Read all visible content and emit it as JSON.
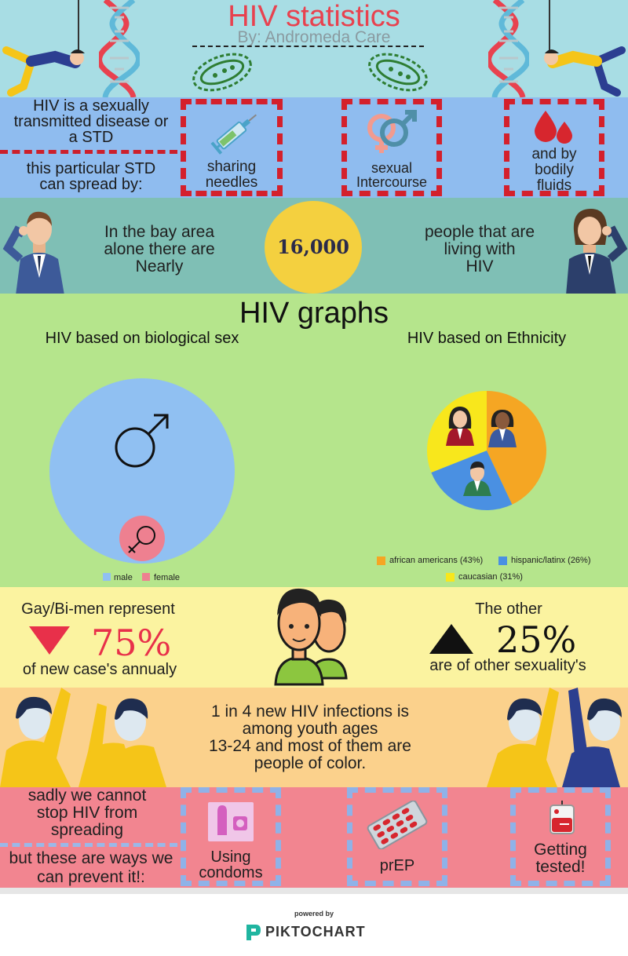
{
  "header": {
    "title": "HIV statistics",
    "byline": "By: Andromeda Care"
  },
  "spread": {
    "intro_lines": [
      "HIV is a sexually",
      "transmitted disease or",
      "a STD"
    ],
    "spread_lines": [
      "this particular STD",
      "can spread by:"
    ],
    "boxes": [
      {
        "lines": [
          "sharing",
          "needles"
        ],
        "icon": "syringe-icon"
      },
      {
        "lines": [
          "sexual",
          "Intercourse"
        ],
        "icon": "gender-symbols-icon"
      },
      {
        "lines": [
          "and by",
          "bodily",
          "fluids"
        ],
        "icon": "blood-drops-icon"
      }
    ]
  },
  "bay": {
    "left_lines": [
      "In the bay area",
      "alone there are",
      "Nearly"
    ],
    "number": "16,000",
    "right_lines": [
      "people that are",
      "living with",
      "HIV"
    ]
  },
  "graphs": {
    "title": "HIV graphs",
    "sex_title": "HIV based on biological sex",
    "ethnicity_title": "HIV based on Ethnicity"
  },
  "chart_data": [
    {
      "type": "bubble",
      "title": "HIV based on biological sex",
      "categories": [
        "male",
        "female"
      ],
      "colors": [
        "#90c0f2",
        "#ee8090"
      ]
    },
    {
      "type": "pie",
      "title": "HIV based on Ethnicity",
      "categories": [
        "african americans (43%)",
        "hispanic/latinx (26%)",
        "caucasian (31%)"
      ],
      "values": [
        43,
        26,
        31
      ],
      "colors": [
        "#f5a623",
        "#4a90e2",
        "#f8e71c"
      ]
    }
  ],
  "gay": {
    "left_top": "Gay/Bi-men represent",
    "left_pct": "75%",
    "left_bottom": "of new case's annualy",
    "right_top": "The other",
    "right_pct": "25%",
    "right_bottom": "are of other sexuality's"
  },
  "youth": {
    "lines": [
      "1 in 4 new HIV infections is",
      "among youth ages",
      "13-24 and most of them are",
      "people of color."
    ]
  },
  "prevent": {
    "top_lines": [
      "sadly we cannot",
      "stop HIV from",
      "spreading"
    ],
    "bottom_lines": [
      "but these are ways we",
      "can prevent it!:"
    ],
    "boxes": [
      {
        "lines": [
          "Using",
          "condoms"
        ],
        "icon": "condom-icon"
      },
      {
        "lines": [
          "prEP"
        ],
        "icon": "pill-pack-icon"
      },
      {
        "lines": [
          "Getting",
          "tested!"
        ],
        "icon": "blood-bag-icon"
      }
    ]
  },
  "footer": {
    "powered": "powered by",
    "brand": "PIKTOCHART"
  }
}
